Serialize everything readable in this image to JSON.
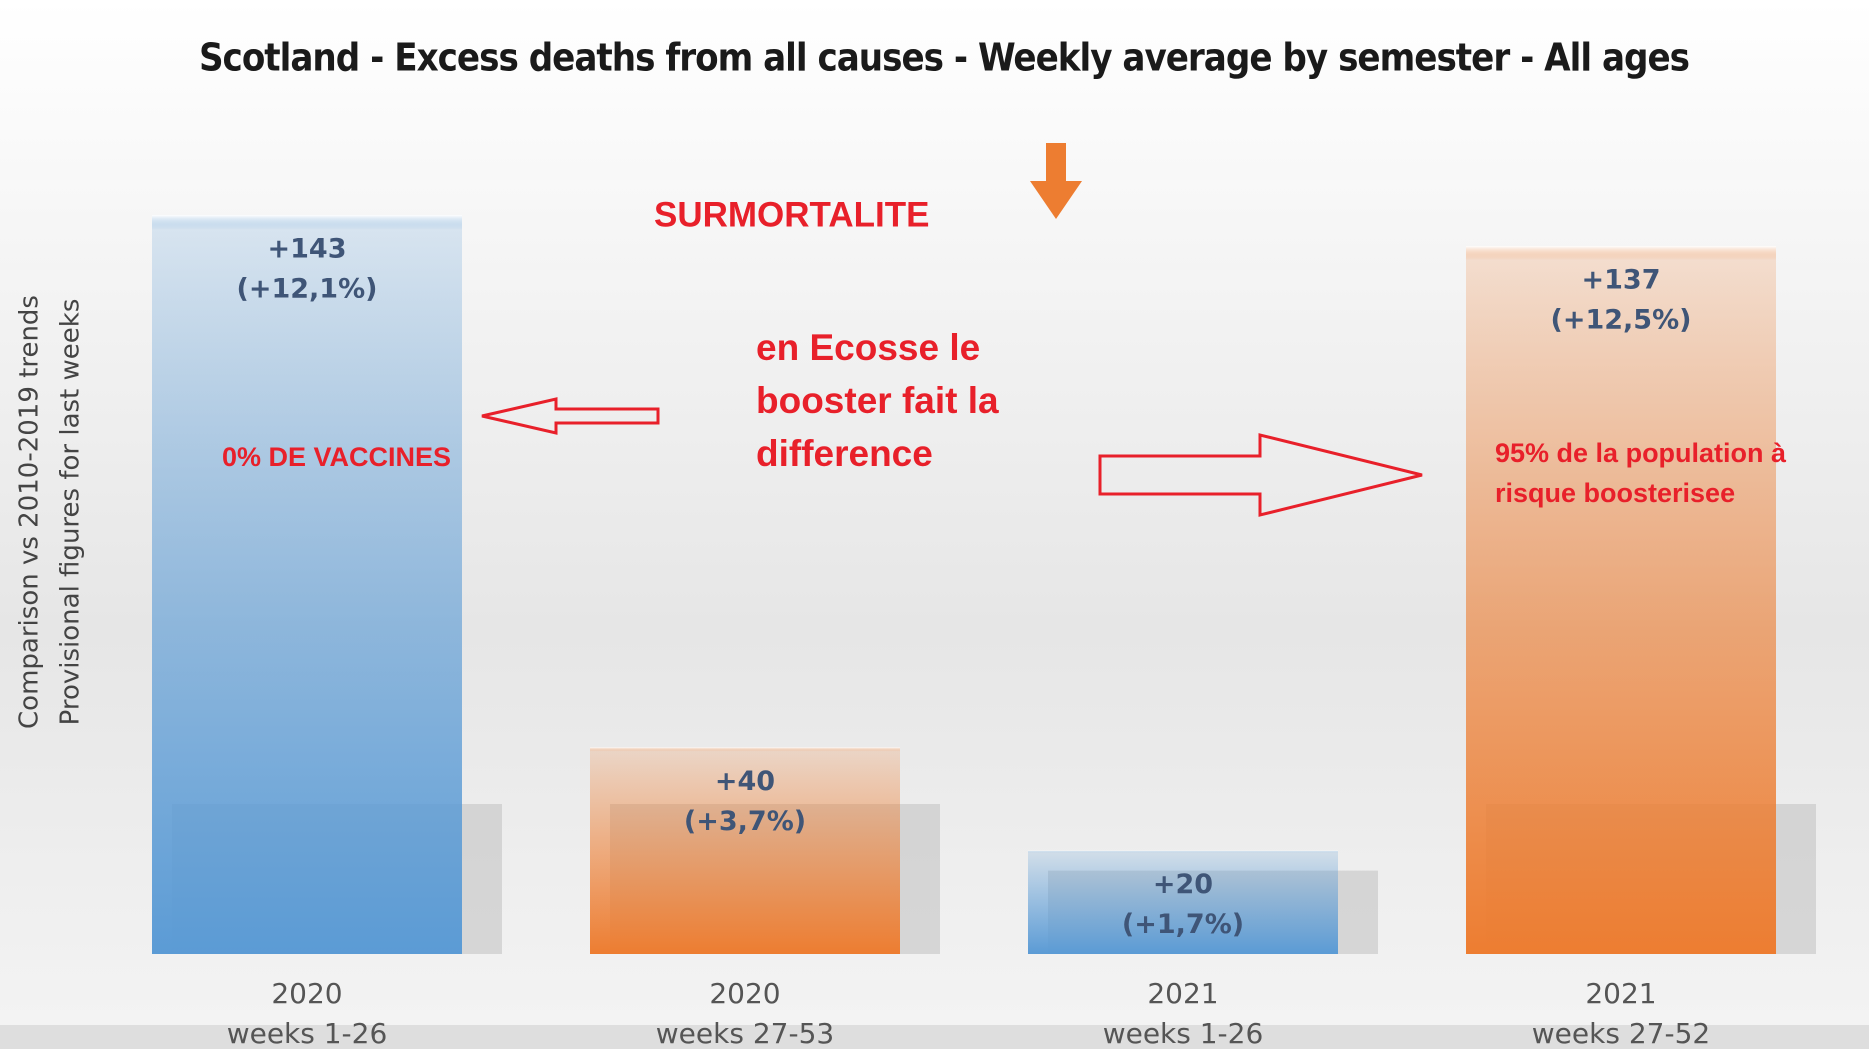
{
  "chart_data": {
    "type": "bar",
    "title": "Scotland - Excess deaths from all causes - Weekly average by semester - All ages",
    "y_label": [
      "Comparison  vs 2010-2019 trends",
      "Provisional  figures for last weeks"
    ],
    "categories": [
      "2020",
      "2020",
      "2021",
      "2021"
    ],
    "category_sublabels": [
      "weeks 1-26",
      "weeks 27-53",
      "weeks 1-26",
      "weeks 27-52"
    ],
    "values": [
      143,
      40,
      20,
      137
    ],
    "value_labels": [
      "+143",
      "+40",
      "+20",
      "+137"
    ],
    "percent_labels": [
      "(+12,1%)",
      "(+3,7%)",
      "(+1,7%)",
      "(+12,5%)"
    ],
    "colors": [
      "#5b9bd5",
      "#ed7d31",
      "#5b9bd5",
      "#ed7d31"
    ],
    "annotations": {
      "surmortalite": "SURMORTALITE",
      "booster": [
        "en Ecosse le",
        "booster fait la",
        "difference"
      ],
      "vaccines": "0% DE VACCINES",
      "population": [
        "95%  de la population à",
        "risque boosterisee"
      ]
    }
  }
}
